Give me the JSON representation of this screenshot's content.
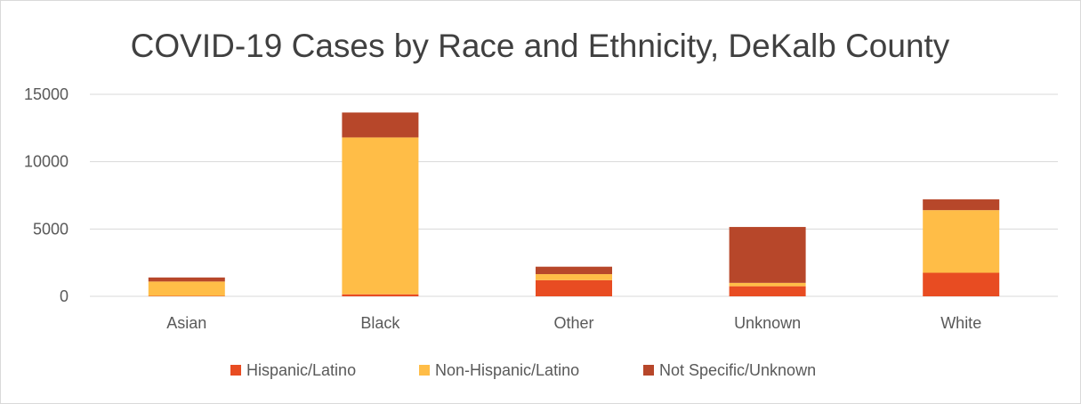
{
  "chart_data": {
    "type": "bar",
    "stacked": true,
    "title": "COVID-19 Cases by Race and Ethnicity, DeKalb County",
    "xlabel": "",
    "ylabel": "",
    "categories": [
      "Asian",
      "Black",
      "Other",
      "Unknown",
      "White"
    ],
    "series": [
      {
        "name": "Hispanic/Latino",
        "color": "#E84C22",
        "values": [
          30,
          150,
          1200,
          750,
          1750
        ]
      },
      {
        "name": "Non-Hispanic/Latino",
        "color": "#FFBD47",
        "values": [
          1070,
          11650,
          450,
          250,
          4650
        ]
      },
      {
        "name": "Not Specific/Unknown",
        "color": "#B7472A",
        "values": [
          300,
          1850,
          550,
          4150,
          800
        ]
      }
    ],
    "ylim": [
      0,
      15000
    ],
    "yticks": [
      0,
      5000,
      10000,
      15000
    ],
    "grid": true,
    "legend_position": "bottom"
  }
}
